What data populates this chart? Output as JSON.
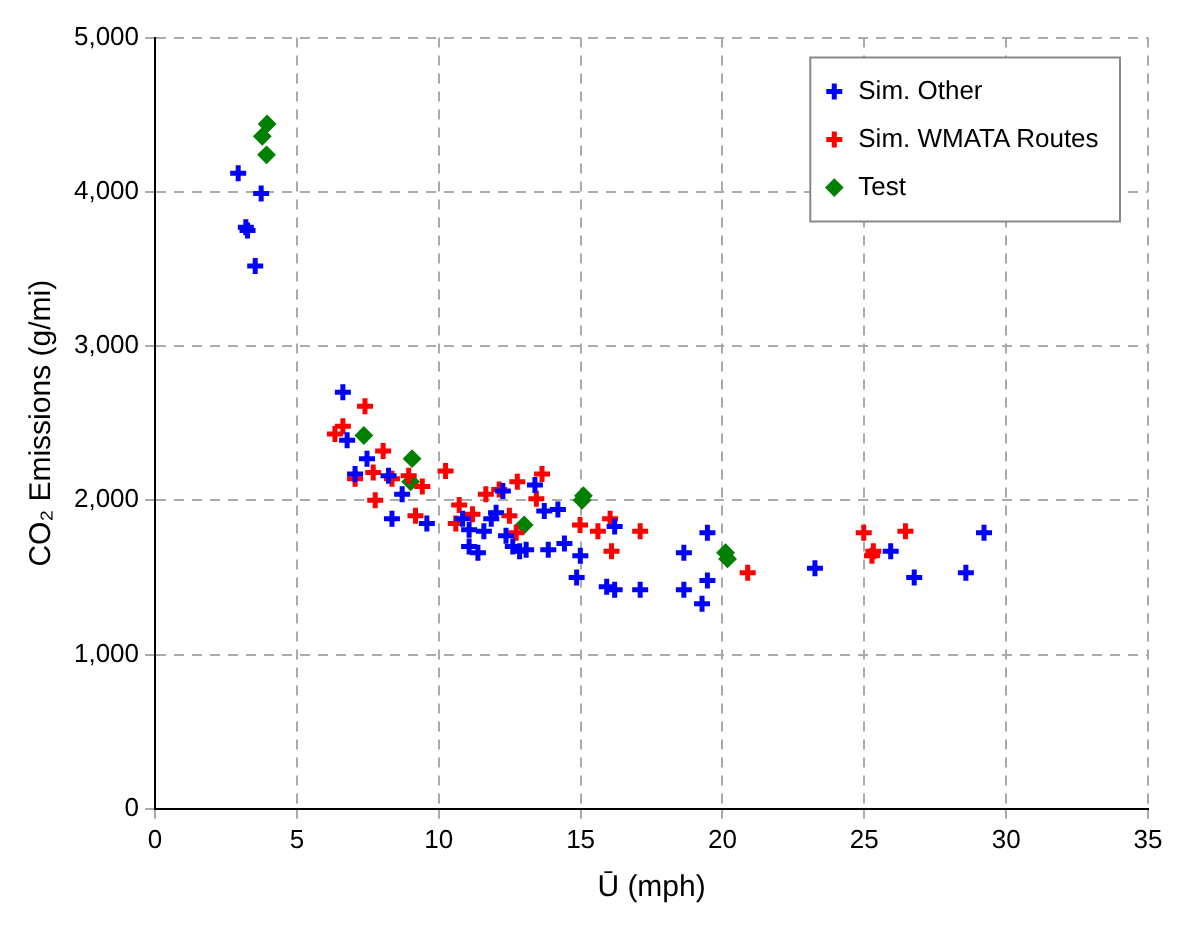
{
  "chart_data": {
    "type": "scatter",
    "xlabel": "Ū (mph)",
    "ylabel": "CO₂ Emissions (g/mi)",
    "xlim": [
      0,
      35
    ],
    "xticks": [
      0,
      5,
      10,
      15,
      20,
      25,
      30,
      35
    ],
    "ylim": [
      0,
      5000
    ],
    "yticks": [
      0,
      {
        "value": 1000,
        "label": "1,000"
      },
      {
        "value": 2000,
        "label": "2,000"
      },
      {
        "value": 3000,
        "label": "3,000"
      },
      {
        "value": 4000,
        "label": "4,000"
      },
      {
        "value": 5000,
        "label": "5,000"
      }
    ],
    "grid": true,
    "legend": "top right",
    "series": [
      {
        "name": "Sim. Other",
        "color": "#0000ff",
        "marker": "cross",
        "x": [
          2.93,
          3.74,
          3.2,
          3.26,
          3.53,
          6.62,
          6.77,
          7.47,
          7.05,
          8.35,
          9.58,
          8.71,
          8.23,
          10.84,
          11.07,
          11.59,
          11.07,
          11.38,
          12.02,
          12.26,
          11.85,
          12.37,
          12.61,
          12.85,
          13.08,
          13.39,
          13.72,
          14.2,
          13.86,
          14.43,
          14.99,
          14.86,
          15.92,
          16.2,
          17.1,
          16.2,
          18.64,
          18.64,
          19.47,
          19.47,
          19.28,
          23.26,
          25.93,
          26.76,
          28.58,
          29.22
        ],
        "values": [
          4120,
          3990,
          3770,
          3750,
          3520,
          2700,
          2390,
          2270,
          2170,
          1880,
          1850,
          2040,
          2160,
          1880,
          1810,
          1800,
          1700,
          1660,
          1920,
          2060,
          1880,
          1770,
          1700,
          1670,
          1680,
          2100,
          1930,
          1940,
          1680,
          1720,
          1640,
          1500,
          1440,
          1420,
          1420,
          1830,
          1660,
          1420,
          1790,
          1480,
          1330,
          1560,
          1670,
          1500,
          1530,
          1790
        ]
      },
      {
        "name": "Sim. WMATA Routes",
        "color": "#ff0000",
        "marker": "cross",
        "x": [
          7.4,
          6.62,
          6.34,
          8.04,
          7.69,
          7.05,
          8.35,
          8.94,
          9.42,
          7.76,
          9.18,
          10.24,
          10.72,
          10.6,
          11.19,
          11.66,
          12.13,
          12.77,
          13.64,
          13.44,
          12.49,
          12.73,
          14.98,
          16.04,
          15.61,
          16.09,
          17.1,
          20.89,
          24.98,
          26.45,
          25.32,
          25.27
        ],
        "values": [
          2610,
          2480,
          2430,
          2320,
          2180,
          2140,
          2140,
          2160,
          2090,
          2000,
          1900,
          2190,
          1970,
          1850,
          1910,
          2040,
          2070,
          2120,
          2170,
          2010,
          1900,
          1790,
          1840,
          1880,
          1800,
          1670,
          1800,
          1530,
          1790,
          1800,
          1670,
          1640
        ]
      },
      {
        "name": "Test",
        "color": "#008000",
        "marker": "diamond",
        "x": [
          3.95,
          3.78,
          3.93,
          7.36,
          9.06,
          9.01,
          13.01,
          15.1,
          15.05,
          20.11,
          20.18
        ],
        "values": [
          4440,
          4360,
          4240,
          2420,
          2270,
          2120,
          1840,
          2030,
          2000,
          1660,
          1620
        ]
      }
    ]
  }
}
